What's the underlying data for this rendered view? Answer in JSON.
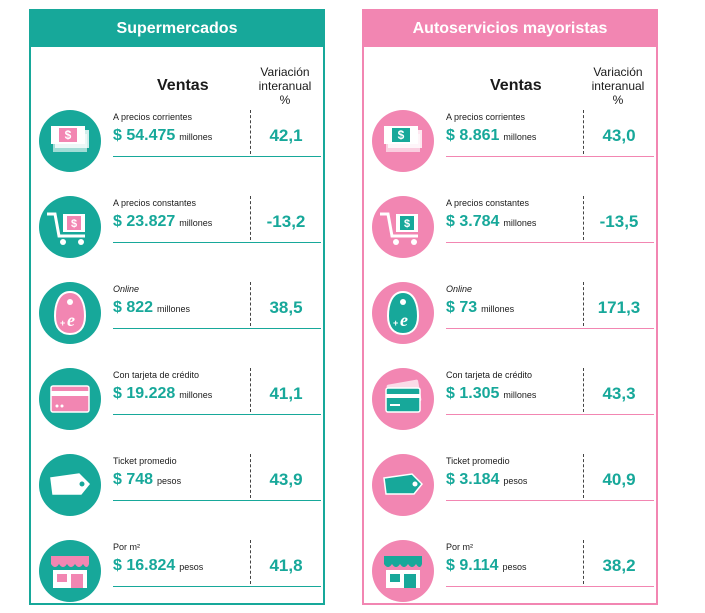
{
  "panels": [
    {
      "title": "Supermercados",
      "col_sales": "Ventas",
      "col_var": [
        "Variación",
        "interanual",
        "%"
      ],
      "rows": [
        {
          "icon": "banknotes-icon",
          "label": "A precios corrientes",
          "italic": false,
          "amount": "$ 54.475",
          "unit": "millones",
          "value": "42,1"
        },
        {
          "icon": "shopping-cart-icon",
          "label": "A precios constantes",
          "italic": false,
          "amount": "$ 23.827",
          "unit": "millones",
          "value": "-13,2"
        },
        {
          "icon": "online-tag-icon",
          "label": "Online",
          "italic": true,
          "amount": "$ 822",
          "unit": "millones",
          "value": "38,5"
        },
        {
          "icon": "credit-card-icon",
          "label": "Con tarjeta de crédito",
          "italic": false,
          "amount": "$ 19.228",
          "unit": "millones",
          "value": "41,1"
        },
        {
          "icon": "ticket-icon",
          "label": "Ticket promedio",
          "italic": false,
          "amount": "$ 748",
          "unit": "pesos",
          "value": "43,9"
        },
        {
          "icon": "store-icon",
          "label": "Por m²",
          "italic": false,
          "amount": "$ 16.824",
          "unit": "pesos",
          "value": "41,8"
        }
      ]
    },
    {
      "title": "Autoservicios mayoristas",
      "col_sales": "Ventas",
      "col_var": [
        "Variación",
        "interanual",
        "%"
      ],
      "rows": [
        {
          "icon": "banknotes-icon",
          "label": "A precios corrientes",
          "italic": false,
          "amount": "$ 8.861",
          "unit": "millones",
          "value": "43,0"
        },
        {
          "icon": "shopping-cart-icon",
          "label": "A precios constantes",
          "italic": false,
          "amount": "$ 3.784",
          "unit": "millones",
          "value": "-13,5"
        },
        {
          "icon": "online-tag-icon",
          "label": "Online",
          "italic": true,
          "amount": "$ 73",
          "unit": "millones",
          "value": "171,3"
        },
        {
          "icon": "credit-cards-icon",
          "label": "Con tarjeta de crédito",
          "italic": false,
          "amount": "$ 1.305",
          "unit": "millones",
          "value": "43,3"
        },
        {
          "icon": "ticket-icon",
          "label": "Ticket promedio",
          "italic": false,
          "amount": "$ 3.184",
          "unit": "pesos",
          "value": "40,9"
        },
        {
          "icon": "store-icon",
          "label": "Por m²",
          "italic": false,
          "amount": "$ 9.114",
          "unit": "pesos",
          "value": "38,2"
        }
      ]
    }
  ],
  "colors": {
    "teal": "#17a89a",
    "pink": "#f286b2"
  }
}
